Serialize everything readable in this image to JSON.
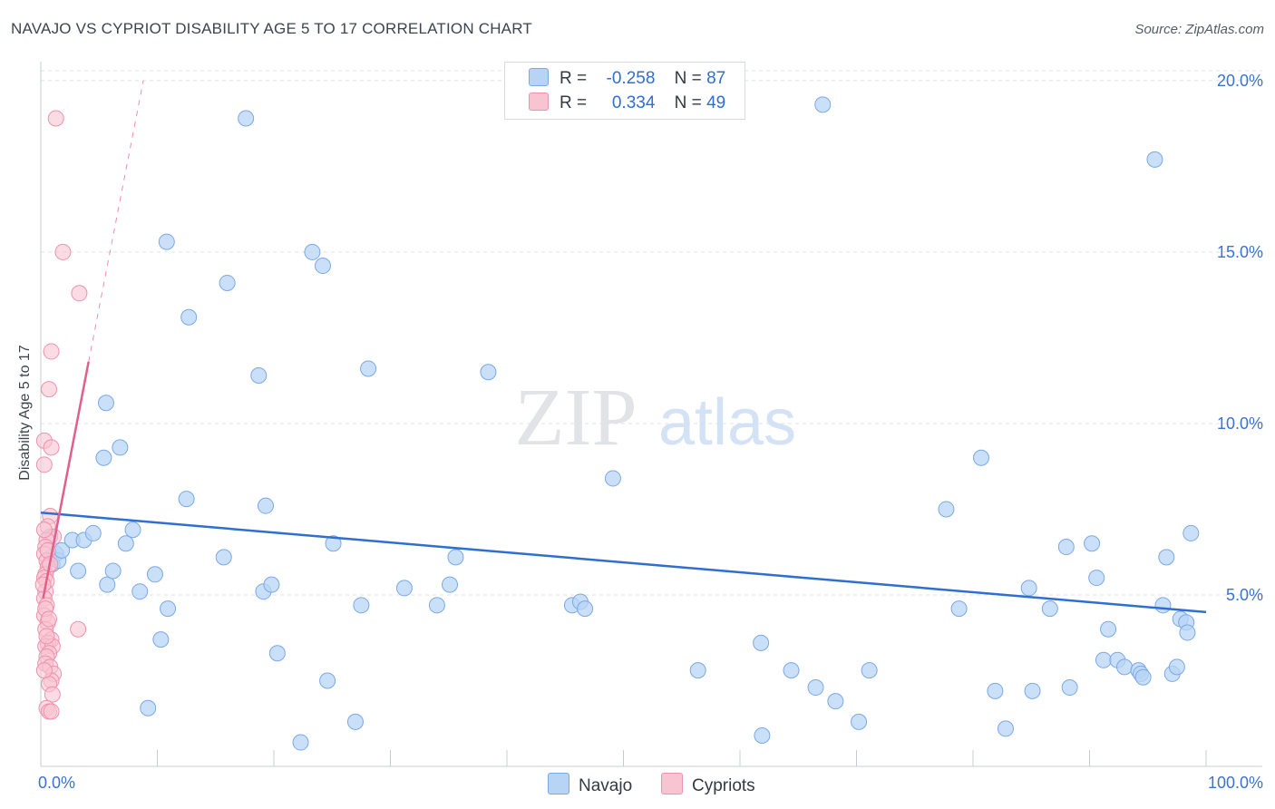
{
  "title": "NAVAJO VS CYPRIOT DISABILITY AGE 5 TO 17 CORRELATION CHART",
  "source": "Source: ZipAtlas.com",
  "colors": {
    "navajo_fill": "#b8d4f5",
    "navajo_stroke": "#7ba9e6",
    "navajo_line": "#2e6fd0",
    "cypriot_fill": "#f8c4d2",
    "cypriot_stroke": "#ee92ad",
    "cypriot_line": "#e0608a",
    "axis_text": "#3b73d0",
    "grid": "#dde0e5"
  },
  "legend": {
    "row1": {
      "r_label": "R =",
      "r_value": "-0.258",
      "n_label": "N =",
      "n_value": "87"
    },
    "row2": {
      "r_label": "R =",
      "r_value": "0.334",
      "n_label": "N =",
      "n_value": "49"
    }
  },
  "bottom_legend": {
    "navajo": "Navajo",
    "cypriots": "Cypriots"
  },
  "watermark": {
    "zip": "ZIP",
    "atlas": "atlas"
  },
  "chart_data": {
    "type": "scatter",
    "title": "NAVAJO VS CYPRIOT DISABILITY AGE 5 TO 17 CORRELATION CHART",
    "xlabel": "",
    "ylabel": "Disability Age 5 to 17",
    "xlim": [
      0,
      100
    ],
    "ylim": [
      0,
      20.5
    ],
    "x_tick_labels": {
      "min": "0.0%",
      "max": "100.0%"
    },
    "y_ticks": [
      5,
      10,
      15,
      20
    ],
    "y_tick_labels": [
      "5.0%",
      "10.0%",
      "15.0%",
      "20.0%"
    ],
    "grid": true,
    "legend_position": "top-center",
    "series": [
      {
        "name": "Navajo",
        "R": -0.258,
        "N": 87,
        "trend": {
          "x": [
            0,
            100
          ],
          "y": [
            7.4,
            4.5
          ],
          "style": "solid"
        },
        "points": [
          [
            0.8,
            6.7
          ],
          [
            0.9,
            6.1
          ],
          [
            1.0,
            5.9
          ],
          [
            1.3,
            6.2
          ],
          [
            1.5,
            6.0
          ],
          [
            1.8,
            6.3
          ],
          [
            2.7,
            6.6
          ],
          [
            3.2,
            5.7
          ],
          [
            3.7,
            6.6
          ],
          [
            4.5,
            6.8
          ],
          [
            5.4,
            9.0
          ],
          [
            5.6,
            10.6
          ],
          [
            5.7,
            5.3
          ],
          [
            6.2,
            5.7
          ],
          [
            6.8,
            9.3
          ],
          [
            7.3,
            6.5
          ],
          [
            7.9,
            6.9
          ],
          [
            8.5,
            5.1
          ],
          [
            9.2,
            1.7
          ],
          [
            9.8,
            5.6
          ],
          [
            10.3,
            3.7
          ],
          [
            10.8,
            15.3
          ],
          [
            10.9,
            4.6
          ],
          [
            12.5,
            7.8
          ],
          [
            12.7,
            13.1
          ],
          [
            15.7,
            6.1
          ],
          [
            16.0,
            14.1
          ],
          [
            17.6,
            18.9
          ],
          [
            18.7,
            11.4
          ],
          [
            19.1,
            5.1
          ],
          [
            19.3,
            7.6
          ],
          [
            19.8,
            5.3
          ],
          [
            20.3,
            3.3
          ],
          [
            22.3,
            0.7
          ],
          [
            23.3,
            15.0
          ],
          [
            24.2,
            14.6
          ],
          [
            24.6,
            2.5
          ],
          [
            25.1,
            6.5
          ],
          [
            27.0,
            1.3
          ],
          [
            27.5,
            4.7
          ],
          [
            28.1,
            11.6
          ],
          [
            31.2,
            5.2
          ],
          [
            34.0,
            4.7
          ],
          [
            35.1,
            5.3
          ],
          [
            35.6,
            6.1
          ],
          [
            38.4,
            11.5
          ],
          [
            45.6,
            4.7
          ],
          [
            46.3,
            4.8
          ],
          [
            46.7,
            4.6
          ],
          [
            49.1,
            8.4
          ],
          [
            56.4,
            2.8
          ],
          [
            61.8,
            3.6
          ],
          [
            61.9,
            0.9
          ],
          [
            64.4,
            2.8
          ],
          [
            66.5,
            2.3
          ],
          [
            67.1,
            19.3
          ],
          [
            68.2,
            1.9
          ],
          [
            70.2,
            1.3
          ],
          [
            71.1,
            2.8
          ],
          [
            77.7,
            7.5
          ],
          [
            78.8,
            4.6
          ],
          [
            80.7,
            9.0
          ],
          [
            81.9,
            2.2
          ],
          [
            82.8,
            1.1
          ],
          [
            84.8,
            5.2
          ],
          [
            85.1,
            2.2
          ],
          [
            86.6,
            4.6
          ],
          [
            88.0,
            6.4
          ],
          [
            88.3,
            2.3
          ],
          [
            90.2,
            6.5
          ],
          [
            90.6,
            5.5
          ],
          [
            91.2,
            3.1
          ],
          [
            91.6,
            4.0
          ],
          [
            92.4,
            3.1
          ],
          [
            93.0,
            2.9
          ],
          [
            94.2,
            2.8
          ],
          [
            94.4,
            2.7
          ],
          [
            94.6,
            2.6
          ],
          [
            95.6,
            17.7
          ],
          [
            96.3,
            4.7
          ],
          [
            96.6,
            6.1
          ],
          [
            97.1,
            2.7
          ],
          [
            97.5,
            2.9
          ],
          [
            97.8,
            4.3
          ],
          [
            98.3,
            4.2
          ],
          [
            98.4,
            3.9
          ],
          [
            98.7,
            6.8
          ]
        ]
      },
      {
        "name": "Cypriots",
        "R": 0.334,
        "N": 49,
        "trend": {
          "x": [
            0.2,
            4.1
          ],
          "y": [
            4.9,
            11.8
          ],
          "style": "solid",
          "dashed_extension": {
            "x": [
              4.1,
              8.8
            ],
            "y": [
              11.8,
              20.0
            ]
          }
        },
        "points": [
          [
            1.3,
            18.9
          ],
          [
            1.9,
            15.0
          ],
          [
            3.3,
            13.8
          ],
          [
            0.9,
            12.1
          ],
          [
            0.7,
            11.0
          ],
          [
            0.3,
            9.5
          ],
          [
            0.9,
            9.3
          ],
          [
            0.3,
            8.8
          ],
          [
            0.8,
            7.3
          ],
          [
            0.6,
            7.0
          ],
          [
            1.1,
            6.7
          ],
          [
            0.5,
            6.6
          ],
          [
            0.4,
            6.4
          ],
          [
            0.3,
            6.2
          ],
          [
            0.5,
            6.0
          ],
          [
            0.6,
            5.8
          ],
          [
            0.4,
            5.6
          ],
          [
            0.3,
            5.5
          ],
          [
            0.5,
            5.4
          ],
          [
            0.4,
            5.1
          ],
          [
            0.3,
            4.9
          ],
          [
            0.5,
            4.7
          ],
          [
            0.3,
            4.4
          ],
          [
            0.6,
            4.2
          ],
          [
            0.4,
            4.0
          ],
          [
            3.2,
            4.0
          ],
          [
            0.9,
            3.7
          ],
          [
            0.6,
            3.6
          ],
          [
            0.4,
            3.5
          ],
          [
            1.0,
            3.5
          ],
          [
            0.7,
            3.3
          ],
          [
            0.5,
            3.2
          ],
          [
            0.4,
            3.0
          ],
          [
            0.8,
            2.9
          ],
          [
            1.1,
            2.7
          ],
          [
            0.9,
            2.5
          ],
          [
            0.7,
            2.4
          ],
          [
            0.5,
            1.7
          ],
          [
            0.7,
            1.6
          ],
          [
            0.9,
            1.6
          ],
          [
            0.3,
            6.9
          ],
          [
            0.6,
            6.3
          ],
          [
            0.8,
            5.9
          ],
          [
            0.2,
            5.3
          ],
          [
            0.4,
            4.6
          ],
          [
            0.7,
            4.3
          ],
          [
            0.5,
            3.8
          ],
          [
            0.3,
            2.8
          ],
          [
            1.0,
            2.1
          ]
        ]
      }
    ]
  }
}
